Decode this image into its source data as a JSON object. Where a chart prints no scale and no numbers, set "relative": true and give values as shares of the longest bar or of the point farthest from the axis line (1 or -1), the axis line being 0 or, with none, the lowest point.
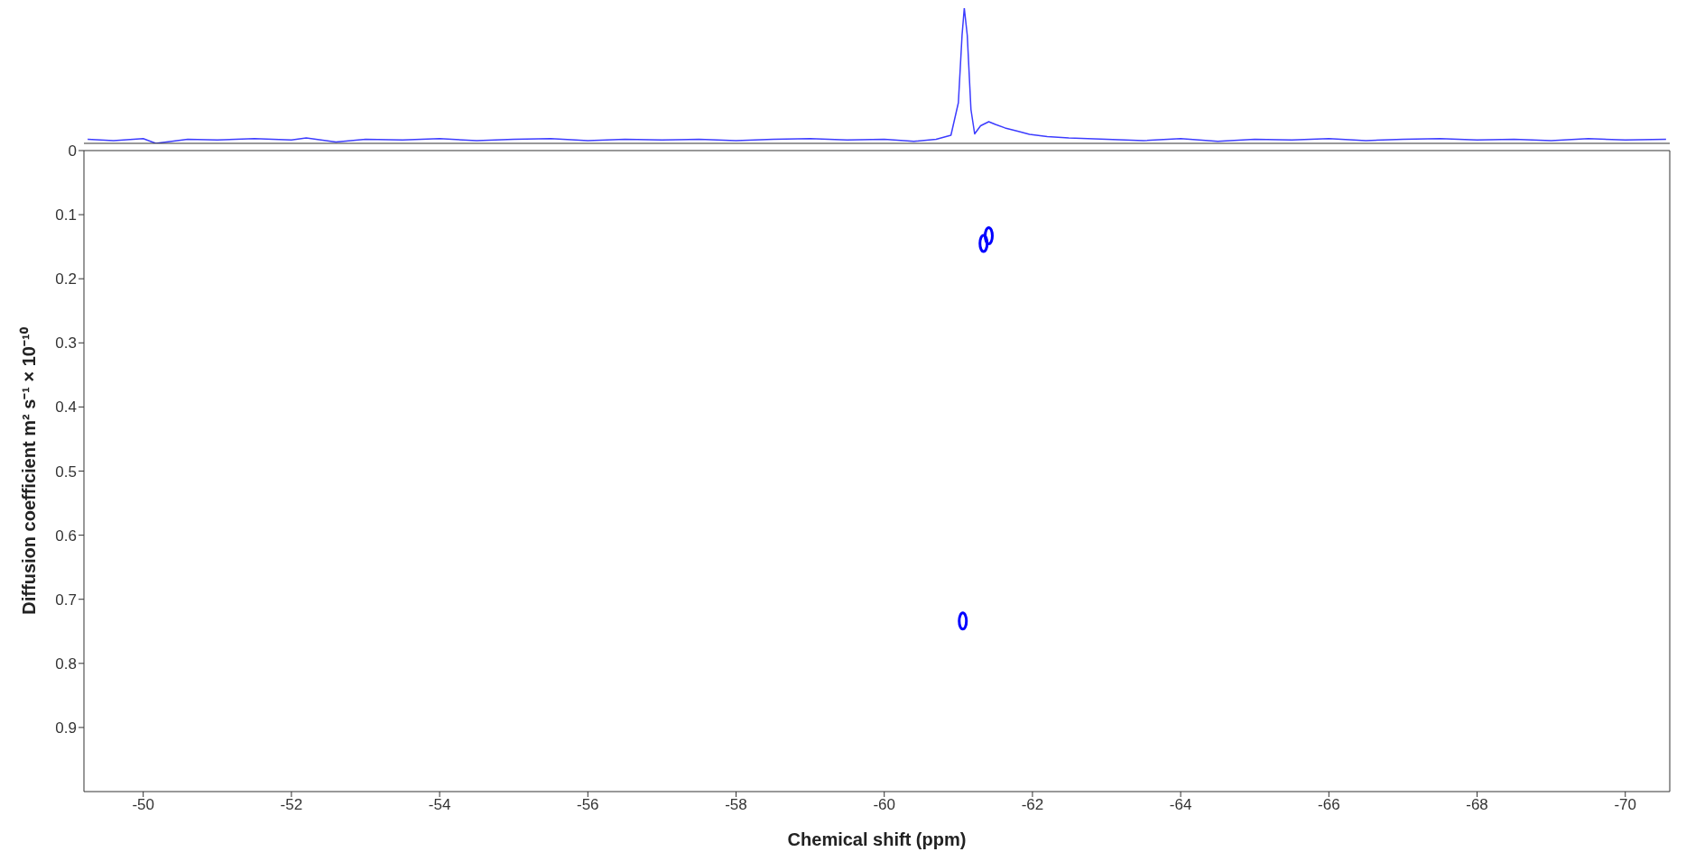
{
  "chart_data": [
    {
      "type": "line",
      "relative": true,
      "tick_labels": false,
      "xlim": [
        -49.2,
        -70.6
      ],
      "line_style": "solid",
      "marker": "none",
      "series": [
        {
          "color": "#3c3cff",
          "x": [
            -49.25,
            -49.6,
            -50.0,
            -50.17,
            -50.6,
            -51.0,
            -51.5,
            -52.0,
            -52.2,
            -52.6,
            -53.0,
            -53.5,
            -54.0,
            -54.5,
            -55.0,
            -55.5,
            -56.0,
            -56.5,
            -57.0,
            -57.5,
            -58.0,
            -58.5,
            -59.0,
            -59.5,
            -60.0,
            -60.4,
            -60.7,
            -60.9,
            -61.0,
            -61.05,
            -61.08,
            -61.12,
            -61.17,
            -61.22,
            -61.3,
            -61.41,
            -61.5,
            -61.63,
            -61.8,
            -61.96,
            -62.2,
            -62.49,
            -63.0,
            -63.5,
            -64.0,
            -64.5,
            -65.0,
            -65.5,
            -66.0,
            -66.5,
            -67.0,
            -67.5,
            -68.0,
            -68.5,
            -69.0,
            -69.5,
            -70.0,
            -70.55
          ],
          "values": [
            0.03,
            0.02,
            0.035,
            0.0,
            0.03,
            0.025,
            0.035,
            0.025,
            0.04,
            0.01,
            0.03,
            0.025,
            0.035,
            0.02,
            0.03,
            0.035,
            0.02,
            0.03,
            0.025,
            0.03,
            0.02,
            0.03,
            0.035,
            0.025,
            0.03,
            0.015,
            0.03,
            0.06,
            0.3,
            0.8,
            1.0,
            0.8,
            0.25,
            0.07,
            0.13,
            0.16,
            0.14,
            0.114,
            0.09,
            0.067,
            0.05,
            0.04,
            0.03,
            0.02,
            0.035,
            0.015,
            0.03,
            0.025,
            0.035,
            0.02,
            0.03,
            0.035,
            0.025,
            0.03,
            0.02,
            0.035,
            0.025,
            0.03
          ]
        }
      ]
    },
    {
      "type": "scatter",
      "xlabel": "Chemical shift (ppm)",
      "ylabel": "Diffusion coefficient m² s⁻¹ × 10⁻¹⁰",
      "xlim": [
        -49.2,
        -70.6
      ],
      "ylim": [
        1,
        0
      ],
      "xticks": [
        -50,
        -52,
        -54,
        -56,
        -58,
        -60,
        -62,
        -64,
        -66,
        -68,
        -70
      ],
      "yticks": [
        0,
        0.1,
        0.2,
        0.3,
        0.4,
        0.5,
        0.6,
        0.7,
        0.8,
        0.9
      ],
      "grid": false,
      "marker": "circle",
      "series": [
        {
          "color": "#0000ff",
          "x": [
            -61.06,
            -61.34,
            -61.41
          ],
          "values": [
            0.734,
            0.145,
            0.133
          ]
        }
      ]
    }
  ]
}
